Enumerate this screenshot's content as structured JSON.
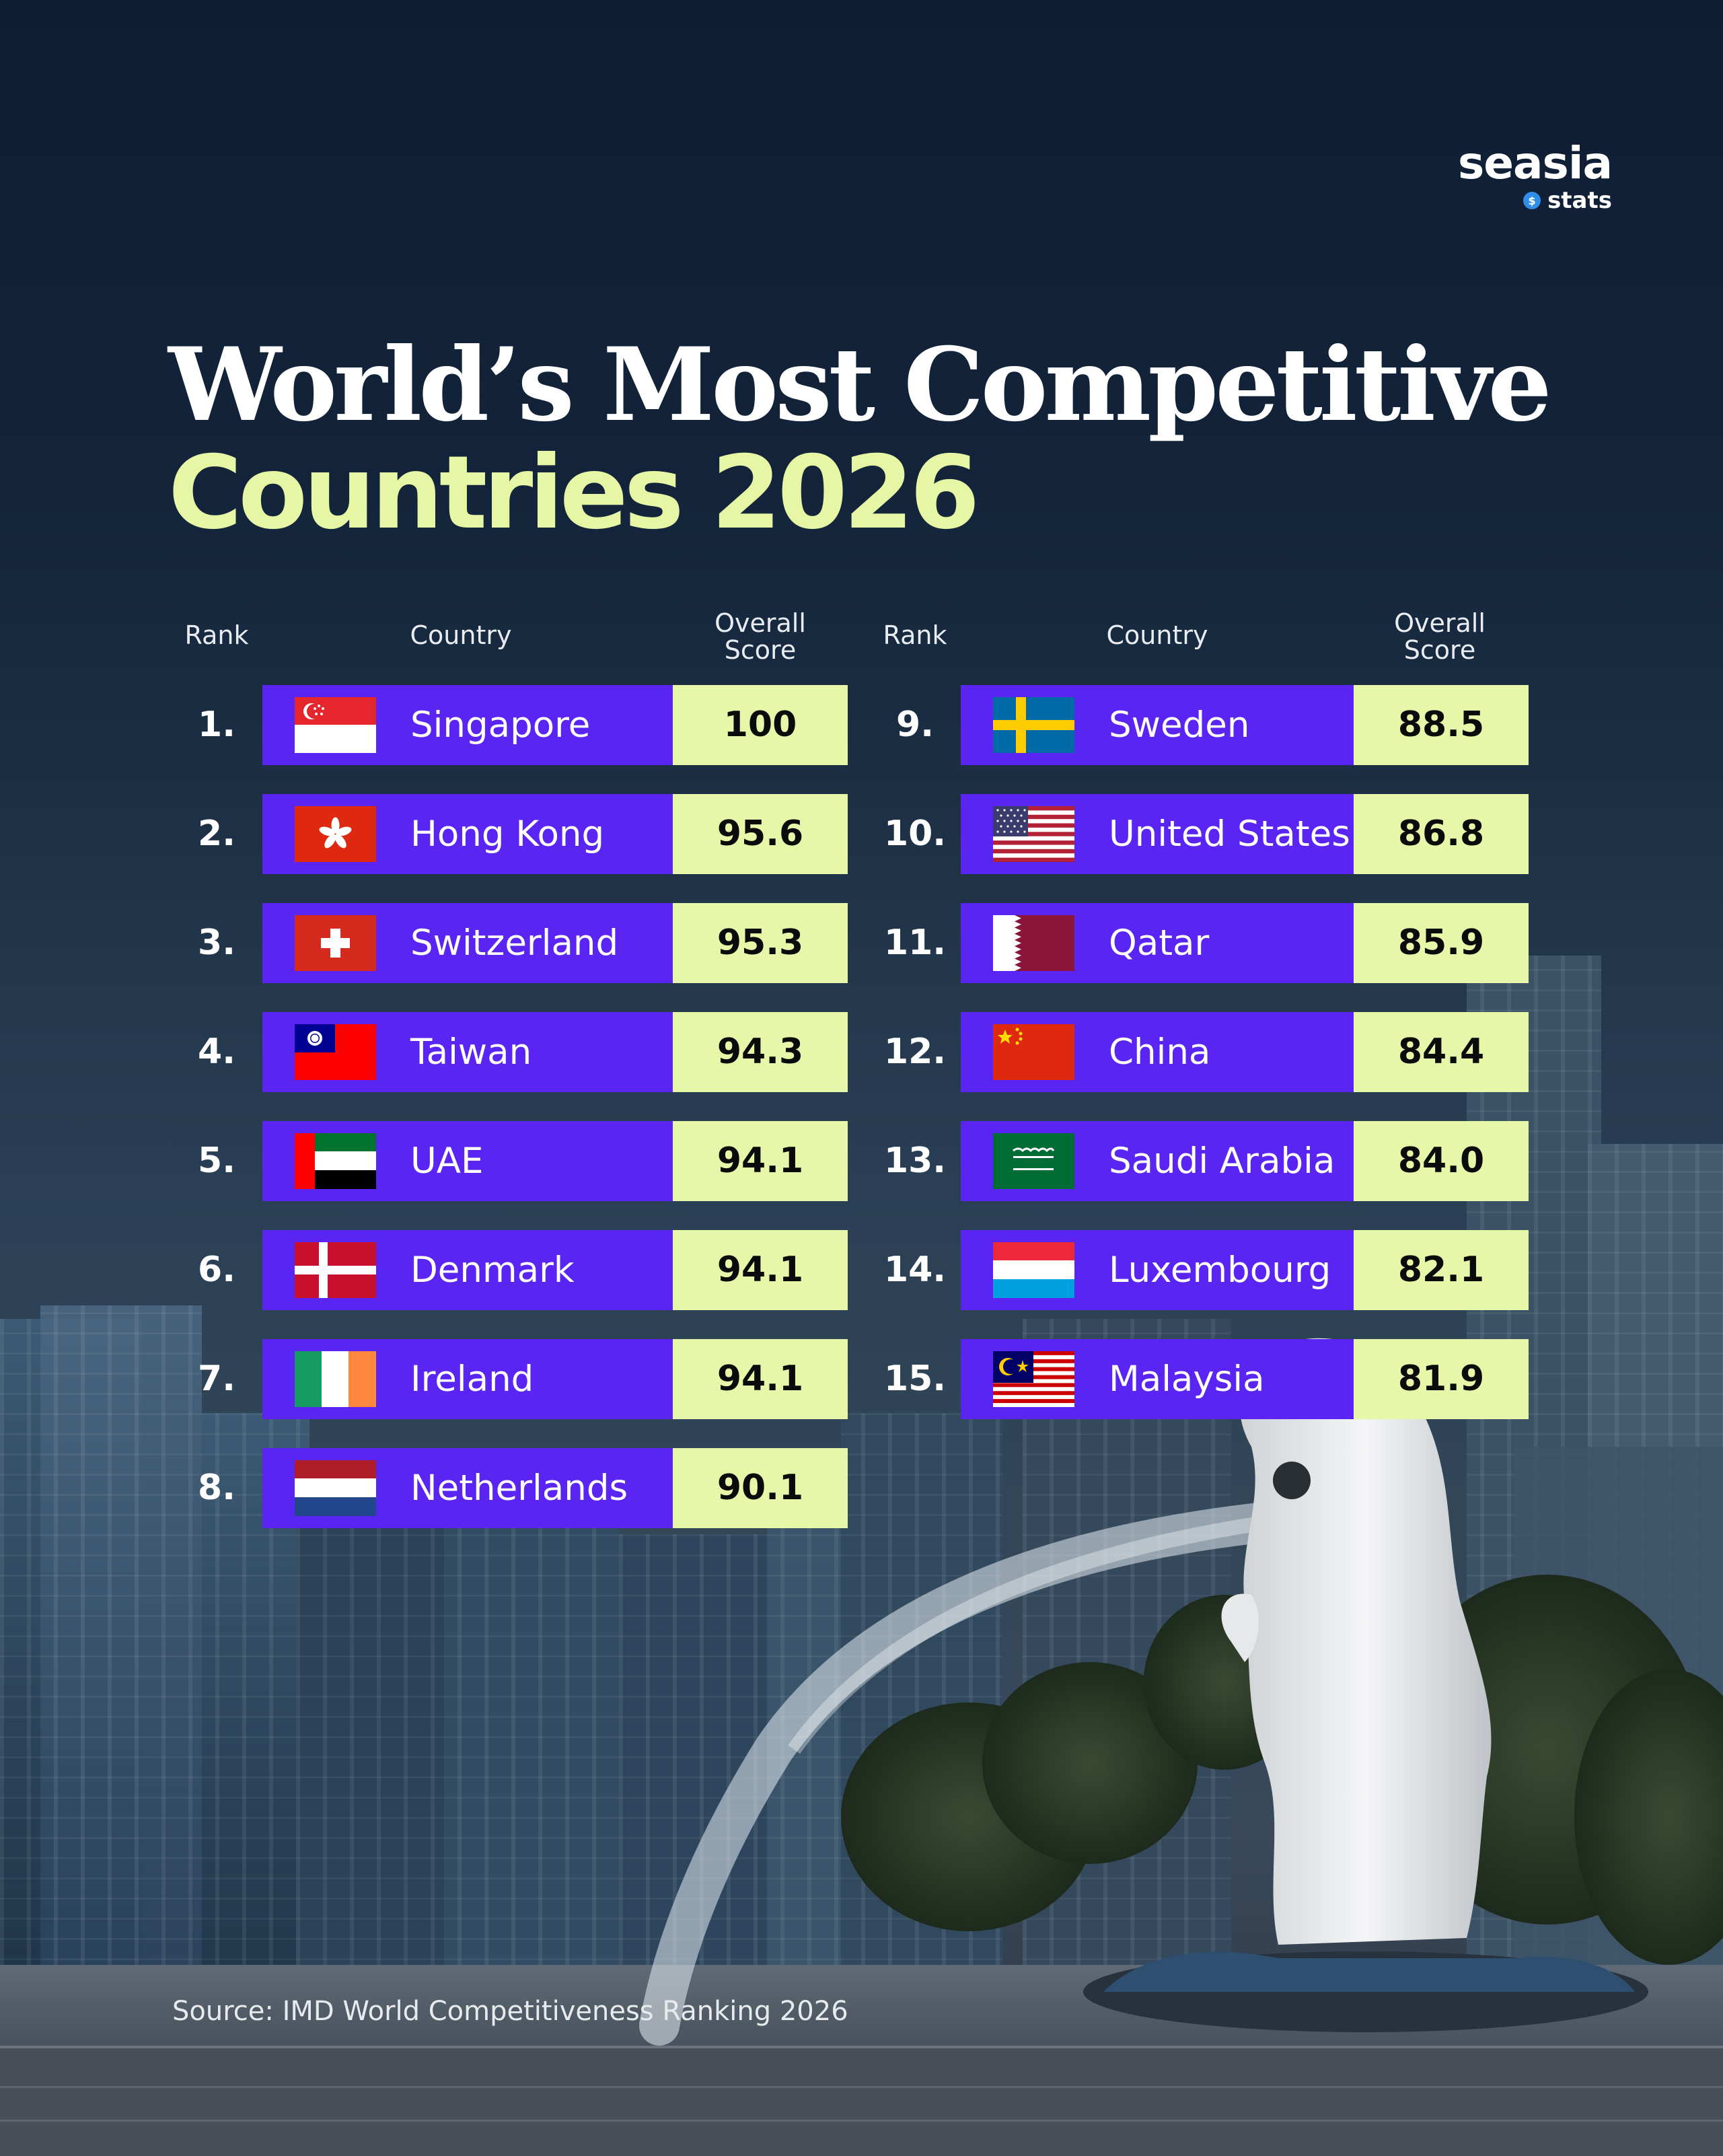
{
  "brand": {
    "name": "seasia",
    "sub": "stats"
  },
  "title": {
    "line1": "World’s Most Competitive",
    "line2": "Countries 2026"
  },
  "columns": {
    "rank": "Rank",
    "country": "Country",
    "score_line1": "Overall",
    "score_line2": "Score"
  },
  "source": "Source: IMD World Competitiveness Ranking 2026",
  "colors": {
    "bar": "#5a25f2",
    "score_bg": "#e6f7a9",
    "title_accent": "#e6f6a4"
  },
  "chart_data": {
    "type": "table",
    "title": "World’s Most Competitive Countries 2026",
    "columns": [
      "Rank",
      "Country",
      "Overall Score"
    ],
    "rows": [
      {
        "rank": "1.",
        "country": "Singapore",
        "score": "100",
        "flag": "singapore-flag"
      },
      {
        "rank": "2.",
        "country": "Hong Kong",
        "score": "95.6",
        "flag": "hong-kong-flag"
      },
      {
        "rank": "3.",
        "country": "Switzerland",
        "score": "95.3",
        "flag": "switzerland-flag"
      },
      {
        "rank": "4.",
        "country": "Taiwan",
        "score": "94.3",
        "flag": "taiwan-flag"
      },
      {
        "rank": "5.",
        "country": "UAE",
        "score": "94.1",
        "flag": "uae-flag"
      },
      {
        "rank": "6.",
        "country": "Denmark",
        "score": "94.1",
        "flag": "denmark-flag"
      },
      {
        "rank": "7.",
        "country": "Ireland",
        "score": "94.1",
        "flag": "ireland-flag"
      },
      {
        "rank": "8.",
        "country": "Netherlands",
        "score": "90.1",
        "flag": "netherlands-flag"
      },
      {
        "rank": "9.",
        "country": "Sweden",
        "score": "88.5",
        "flag": "sweden-flag"
      },
      {
        "rank": "10.",
        "country": "United States",
        "score": "86.8",
        "flag": "united-states-flag"
      },
      {
        "rank": "11.",
        "country": "Qatar",
        "score": "85.9",
        "flag": "qatar-flag"
      },
      {
        "rank": "12.",
        "country": "China",
        "score": "84.4",
        "flag": "china-flag"
      },
      {
        "rank": "13.",
        "country": "Saudi Arabia",
        "score": "84.0",
        "flag": "saudi-arabia-flag"
      },
      {
        "rank": "14.",
        "country": "Luxembourg",
        "score": "82.1",
        "flag": "luxembourg-flag"
      },
      {
        "rank": "15.",
        "country": "Malaysia",
        "score": "81.9",
        "flag": "malaysia-flag"
      }
    ],
    "source": "Source: IMD World Competitiveness Ranking 2026"
  }
}
